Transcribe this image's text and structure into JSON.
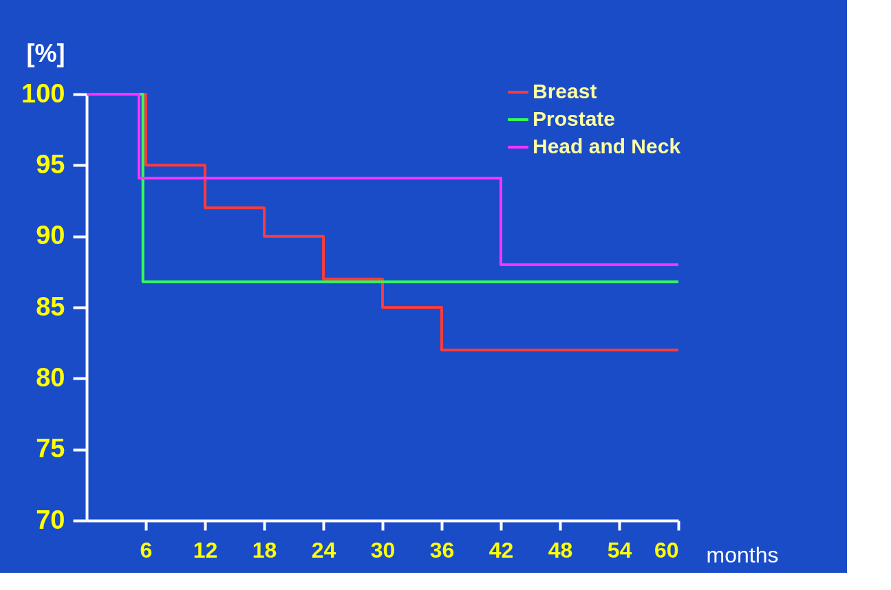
{
  "chart_data": {
    "type": "step",
    "xlabel": "months",
    "ylabel": "[%]",
    "xlim": [
      0,
      60
    ],
    "xticks": [
      6,
      12,
      18,
      24,
      30,
      36,
      42,
      48,
      54,
      60
    ],
    "ylim": [
      70,
      100
    ],
    "yticks": [
      70,
      75,
      80,
      85,
      90,
      95,
      100
    ],
    "grid": false,
    "legend": "top right",
    "line_style": "solid",
    "marker": "none",
    "series": [
      {
        "name": "Breast",
        "color": "#ff3b3b",
        "x": [
          0,
          6,
          12,
          18,
          24,
          30,
          36,
          60
        ],
        "values": [
          100,
          95,
          92,
          90,
          87,
          85,
          82,
          82
        ]
      },
      {
        "name": "Prostate",
        "color": "#33ff55",
        "x": [
          0,
          5.7,
          60
        ],
        "values": [
          100,
          86.8,
          86.8
        ]
      },
      {
        "name": "Head and Neck",
        "color": "#ff33ff",
        "x": [
          0,
          5.3,
          42,
          60
        ],
        "values": [
          100,
          94.1,
          88,
          88
        ]
      }
    ]
  }
}
